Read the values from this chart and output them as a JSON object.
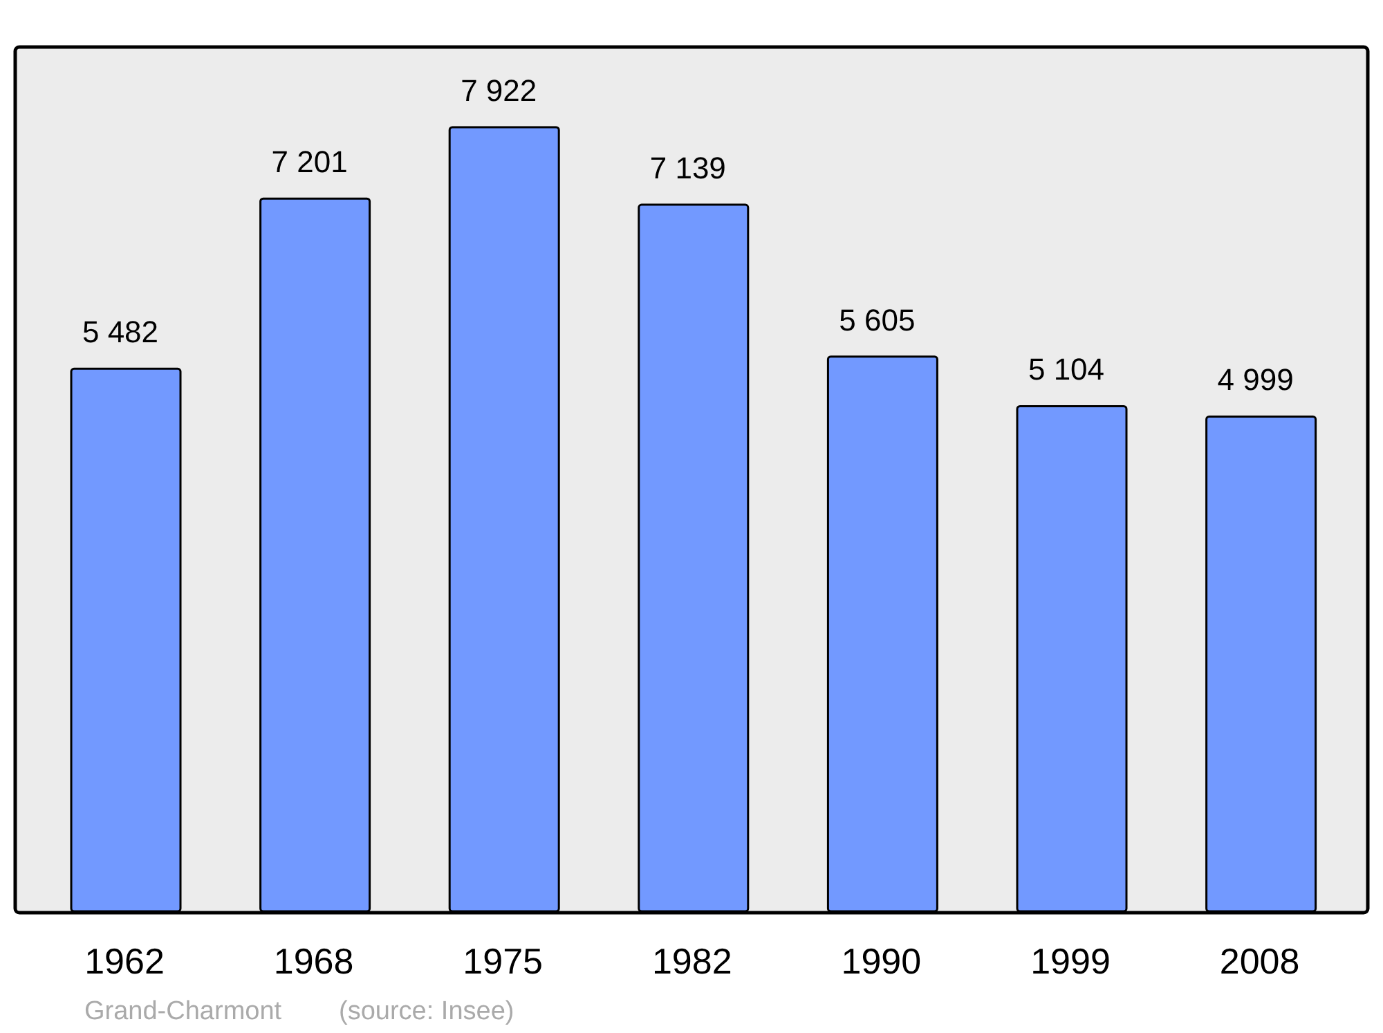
{
  "chart_data": {
    "type": "bar",
    "categories": [
      "1962",
      "1968",
      "1975",
      "1982",
      "1990",
      "1999",
      "2008"
    ],
    "values": [
      5482,
      7201,
      7922,
      7139,
      5605,
      5104,
      4999
    ],
    "value_labels": [
      "5 482",
      "7 201",
      "7 922",
      "7 139",
      "5 605",
      "5 104",
      "4 999"
    ],
    "color": "#7299ff",
    "annotations": [
      "Grand-Charmont",
      "(source: Insee)"
    ]
  }
}
